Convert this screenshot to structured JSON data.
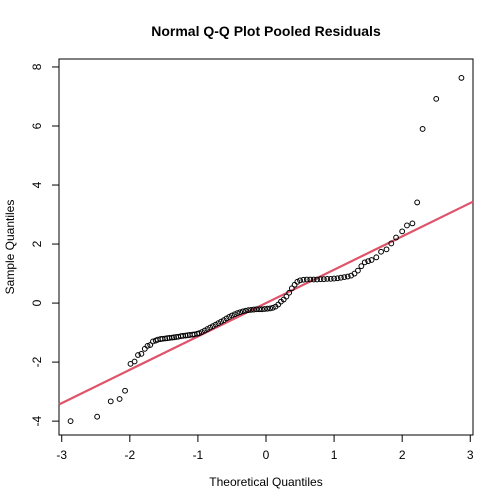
{
  "chart_data": {
    "type": "scatter",
    "title": "Normal Q-Q Plot Pooled Residuals",
    "xlabel": "Theoretical Quantiles",
    "ylabel": "Sample Quantiles",
    "xlim": [
      -3.04,
      3.04
    ],
    "ylim": [
      -4.47,
      8.27
    ],
    "x_ticks": [
      -3,
      -2,
      -1,
      0,
      1,
      2,
      3
    ],
    "y_ticks": [
      -4,
      -2,
      0,
      2,
      4,
      6,
      8
    ],
    "grid": false,
    "legend": "none",
    "point_color": "#000000",
    "reference_line": {
      "color": "#DF536B",
      "intercept": 0.0,
      "slope": 1.13
    },
    "points": [
      [
        -2.87,
        -4.0
      ],
      [
        -2.48,
        -3.85
      ],
      [
        -2.28,
        -3.33
      ],
      [
        -2.15,
        -3.25
      ],
      [
        -2.07,
        -2.97
      ],
      [
        -1.99,
        -2.06
      ],
      [
        -1.93,
        -1.98
      ],
      [
        -1.88,
        -1.76
      ],
      [
        -1.83,
        -1.72
      ],
      [
        -1.78,
        -1.55
      ],
      [
        -1.74,
        -1.45
      ],
      [
        -1.7,
        -1.42
      ],
      [
        -1.66,
        -1.3
      ],
      [
        -1.62,
        -1.27
      ],
      [
        -1.59,
        -1.24
      ],
      [
        -1.55,
        -1.22
      ],
      [
        -1.52,
        -1.21
      ],
      [
        -1.48,
        -1.2
      ],
      [
        -1.45,
        -1.19
      ],
      [
        -1.42,
        -1.18
      ],
      [
        -1.38,
        -1.17
      ],
      [
        -1.35,
        -1.16
      ],
      [
        -1.32,
        -1.15
      ],
      [
        -1.29,
        -1.14
      ],
      [
        -1.25,
        -1.12
      ],
      [
        -1.22,
        -1.11
      ],
      [
        -1.18,
        -1.1
      ],
      [
        -1.15,
        -1.09
      ],
      [
        -1.12,
        -1.08
      ],
      [
        -1.08,
        -1.07
      ],
      [
        -1.05,
        -1.06
      ],
      [
        -1.01,
        -1.04
      ],
      [
        -0.98,
        -1.02
      ],
      [
        -0.94,
        -0.98
      ],
      [
        -0.9,
        -0.93
      ],
      [
        -0.86,
        -0.88
      ],
      [
        -0.82,
        -0.83
      ],
      [
        -0.78,
        -0.78
      ],
      [
        -0.74,
        -0.73
      ],
      [
        -0.7,
        -0.68
      ],
      [
        -0.66,
        -0.63
      ],
      [
        -0.62,
        -0.58
      ],
      [
        -0.58,
        -0.52
      ],
      [
        -0.54,
        -0.47
      ],
      [
        -0.5,
        -0.42
      ],
      [
        -0.46,
        -0.38
      ],
      [
        -0.42,
        -0.34
      ],
      [
        -0.38,
        -0.31
      ],
      [
        -0.34,
        -0.28
      ],
      [
        -0.3,
        -0.26
      ],
      [
        -0.26,
        -0.24
      ],
      [
        -0.22,
        -0.23
      ],
      [
        -0.18,
        -0.22
      ],
      [
        -0.14,
        -0.21
      ],
      [
        -0.1,
        -0.21
      ],
      [
        -0.06,
        -0.21
      ],
      [
        -0.02,
        -0.2
      ],
      [
        0.02,
        -0.19
      ],
      [
        0.06,
        -0.18
      ],
      [
        0.1,
        -0.16
      ],
      [
        0.14,
        -0.12
      ],
      [
        0.18,
        -0.05
      ],
      [
        0.22,
        0.05
      ],
      [
        0.26,
        0.12
      ],
      [
        0.3,
        0.22
      ],
      [
        0.34,
        0.35
      ],
      [
        0.38,
        0.5
      ],
      [
        0.42,
        0.62
      ],
      [
        0.46,
        0.72
      ],
      [
        0.5,
        0.77
      ],
      [
        0.55,
        0.79
      ],
      [
        0.6,
        0.8
      ],
      [
        0.65,
        0.8
      ],
      [
        0.7,
        0.8
      ],
      [
        0.75,
        0.8
      ],
      [
        0.8,
        0.81
      ],
      [
        0.85,
        0.81
      ],
      [
        0.9,
        0.82
      ],
      [
        0.95,
        0.82
      ],
      [
        1.0,
        0.83
      ],
      [
        1.05,
        0.84
      ],
      [
        1.1,
        0.86
      ],
      [
        1.15,
        0.88
      ],
      [
        1.2,
        0.9
      ],
      [
        1.25,
        0.93
      ],
      [
        1.3,
        1.0
      ],
      [
        1.35,
        1.1
      ],
      [
        1.4,
        1.25
      ],
      [
        1.45,
        1.38
      ],
      [
        1.5,
        1.42
      ],
      [
        1.55,
        1.46
      ],
      [
        1.62,
        1.55
      ],
      [
        1.69,
        1.74
      ],
      [
        1.77,
        1.82
      ],
      [
        1.84,
        2.02
      ],
      [
        1.91,
        2.22
      ],
      [
        2.0,
        2.43
      ],
      [
        2.07,
        2.63
      ],
      [
        2.15,
        2.7
      ],
      [
        2.22,
        3.41
      ],
      [
        2.3,
        5.9
      ],
      [
        2.5,
        6.92
      ],
      [
        2.87,
        7.63
      ]
    ]
  }
}
